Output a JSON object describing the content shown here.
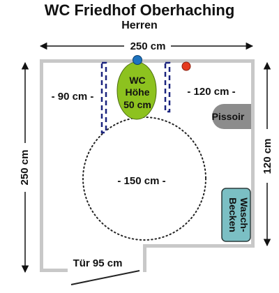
{
  "title": "WC Friedhof Oberhaching",
  "subtitle": "Herren",
  "dimensions": {
    "top_width": "250 cm",
    "left_height": "250 cm",
    "right_height": "120 cm",
    "left_clearance": "- 90 cm -",
    "right_clearance": "- 120 cm -",
    "turning_circle": "- 150 cm -",
    "door": "Tür 95 cm"
  },
  "fixtures": {
    "wc": {
      "line1": "WC",
      "line2": "Höhe",
      "line3": "50 cm"
    },
    "urinal": "Pissoir",
    "sink": {
      "line1": "Wasch-",
      "line2": "Becken"
    }
  },
  "colors": {
    "wall": "#c8c8c8",
    "wc_fill": "#8dc21f",
    "grab_bar": "#1a237e",
    "flush_button": "#1e73be",
    "alarm_button": "#e53a1e",
    "urinal_fill": "#8c8c8c",
    "sink_fill": "#7bbfc4"
  }
}
